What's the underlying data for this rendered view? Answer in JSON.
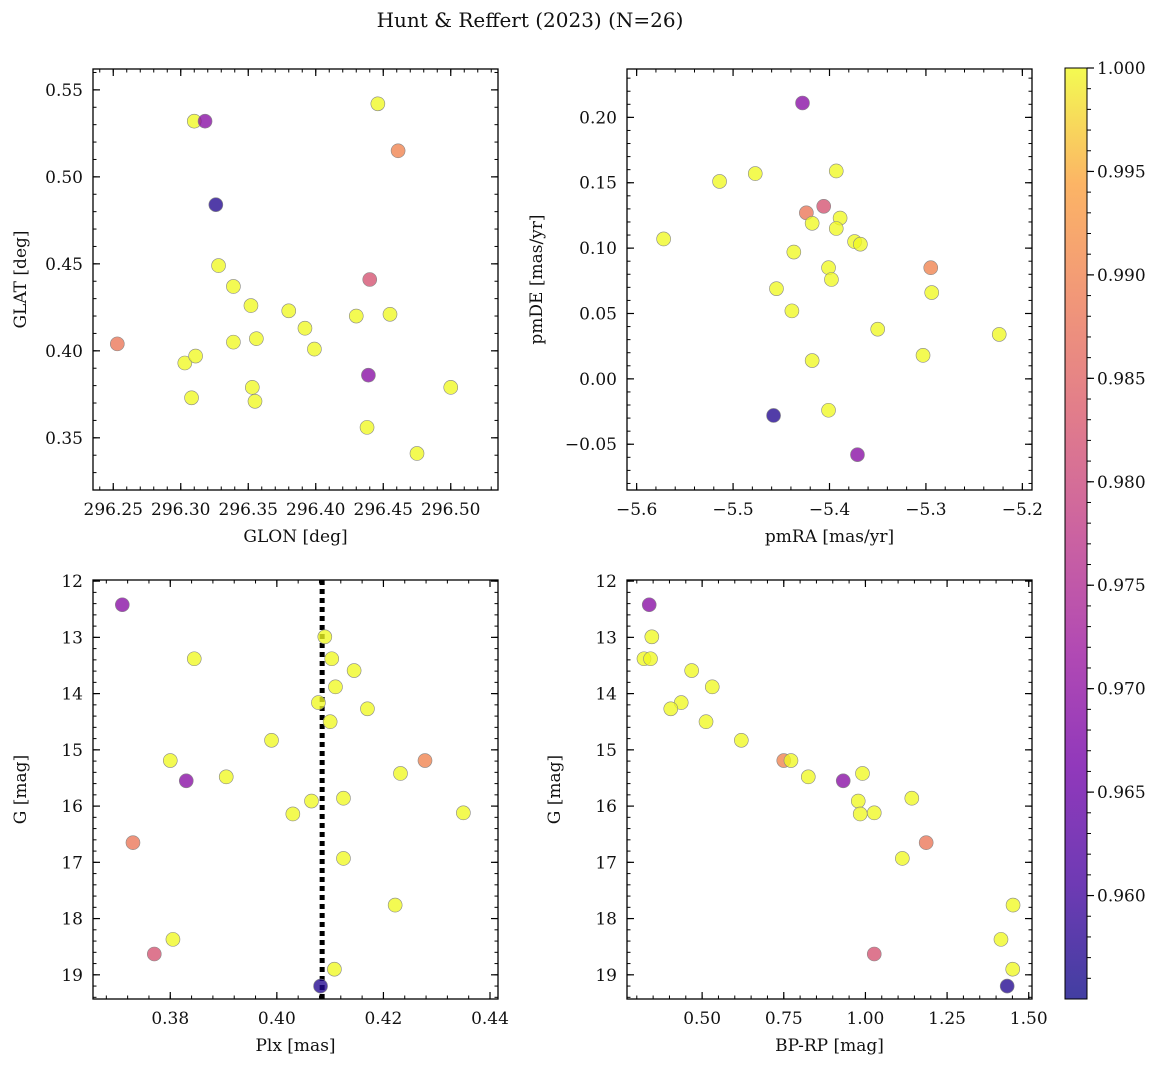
{
  "figure": {
    "title": "Hunt & Reffert (2023) (N=26)"
  },
  "colorbar": {
    "label": "",
    "range": [
      0.955,
      1.0
    ],
    "ticks": [
      "0.960",
      "0.965",
      "0.970",
      "0.975",
      "0.980",
      "0.985",
      "0.990",
      "0.995",
      "1.000"
    ],
    "colormap": "plasma"
  },
  "chart_data": [
    {
      "type": "scatter",
      "name": "glon-glat",
      "xlabel": "GLON [deg]",
      "ylabel": "GLAT [deg]",
      "xlim": [
        296.235,
        296.535
      ],
      "ylim": [
        0.32,
        0.562
      ],
      "xticks": [
        "296.25",
        "296.30",
        "296.35",
        "296.40",
        "296.45",
        "296.50"
      ],
      "yticks": [
        "0.35",
        "0.40",
        "0.45",
        "0.50",
        "0.55"
      ],
      "points": [
        {
          "x": 296.31,
          "y": 0.532,
          "c": 1.0
        },
        {
          "x": 296.318,
          "y": 0.532,
          "c": 0.969
        },
        {
          "x": 296.326,
          "y": 0.484,
          "c": 0.957
        },
        {
          "x": 296.328,
          "y": 0.449,
          "c": 1.0
        },
        {
          "x": 296.339,
          "y": 0.437,
          "c": 1.0
        },
        {
          "x": 296.352,
          "y": 0.426,
          "c": 1.0
        },
        {
          "x": 296.339,
          "y": 0.405,
          "c": 1.0
        },
        {
          "x": 296.356,
          "y": 0.407,
          "c": 1.0
        },
        {
          "x": 296.353,
          "y": 0.379,
          "c": 1.0
        },
        {
          "x": 296.355,
          "y": 0.371,
          "c": 1.0
        },
        {
          "x": 296.38,
          "y": 0.423,
          "c": 1.0
        },
        {
          "x": 296.392,
          "y": 0.413,
          "c": 1.0
        },
        {
          "x": 296.399,
          "y": 0.401,
          "c": 1.0
        },
        {
          "x": 296.43,
          "y": 0.42,
          "c": 1.0
        },
        {
          "x": 296.455,
          "y": 0.421,
          "c": 1.0
        },
        {
          "x": 296.44,
          "y": 0.441,
          "c": 0.982
        },
        {
          "x": 296.446,
          "y": 0.542,
          "c": 1.0
        },
        {
          "x": 296.461,
          "y": 0.515,
          "c": 0.99
        },
        {
          "x": 296.253,
          "y": 0.404,
          "c": 0.988
        },
        {
          "x": 296.303,
          "y": 0.393,
          "c": 1.0
        },
        {
          "x": 296.311,
          "y": 0.397,
          "c": 1.0
        },
        {
          "x": 296.308,
          "y": 0.373,
          "c": 1.0
        },
        {
          "x": 296.439,
          "y": 0.386,
          "c": 0.969
        },
        {
          "x": 296.438,
          "y": 0.356,
          "c": 1.0
        },
        {
          "x": 296.5,
          "y": 0.379,
          "c": 1.0
        },
        {
          "x": 296.475,
          "y": 0.341,
          "c": 1.0
        }
      ]
    },
    {
      "type": "scatter",
      "name": "pmra-pmde",
      "xlabel": "pmRA [mas/yr]",
      "ylabel": "pmDE [mas/yr]",
      "xlim": [
        -5.61,
        -5.19
      ],
      "ylim": [
        -0.085,
        0.237
      ],
      "xticks": [
        "−5.6",
        "−5.5",
        "−5.4",
        "−5.3",
        "−5.2"
      ],
      "yticks": [
        "−0.05",
        "0.00",
        "0.05",
        "0.10",
        "0.15",
        "0.20"
      ],
      "points": [
        {
          "x": -5.428,
          "y": 0.211,
          "c": 0.969
        },
        {
          "x": -5.514,
          "y": 0.151,
          "c": 1.0
        },
        {
          "x": -5.477,
          "y": 0.157,
          "c": 1.0
        },
        {
          "x": -5.393,
          "y": 0.159,
          "c": 1.0
        },
        {
          "x": -5.424,
          "y": 0.127,
          "c": 0.988
        },
        {
          "x": -5.406,
          "y": 0.132,
          "c": 0.982
        },
        {
          "x": -5.418,
          "y": 0.119,
          "c": 1.0
        },
        {
          "x": -5.389,
          "y": 0.123,
          "c": 1.0
        },
        {
          "x": -5.393,
          "y": 0.115,
          "c": 1.0
        },
        {
          "x": -5.374,
          "y": 0.105,
          "c": 1.0
        },
        {
          "x": -5.368,
          "y": 0.103,
          "c": 1.0
        },
        {
          "x": -5.437,
          "y": 0.097,
          "c": 1.0
        },
        {
          "x": -5.572,
          "y": 0.107,
          "c": 1.0
        },
        {
          "x": -5.401,
          "y": 0.085,
          "c": 1.0
        },
        {
          "x": -5.398,
          "y": 0.076,
          "c": 1.0
        },
        {
          "x": -5.455,
          "y": 0.069,
          "c": 1.0
        },
        {
          "x": -5.439,
          "y": 0.052,
          "c": 1.0
        },
        {
          "x": -5.295,
          "y": 0.085,
          "c": 0.99
        },
        {
          "x": -5.294,
          "y": 0.066,
          "c": 1.0
        },
        {
          "x": -5.35,
          "y": 0.038,
          "c": 1.0
        },
        {
          "x": -5.418,
          "y": 0.014,
          "c": 1.0
        },
        {
          "x": -5.303,
          "y": 0.018,
          "c": 1.0
        },
        {
          "x": -5.224,
          "y": 0.034,
          "c": 1.0
        },
        {
          "x": -5.401,
          "y": -0.024,
          "c": 1.0
        },
        {
          "x": -5.458,
          "y": -0.028,
          "c": 0.957
        },
        {
          "x": -5.371,
          "y": -0.058,
          "c": 0.969
        }
      ]
    },
    {
      "type": "scatter",
      "name": "plx-g",
      "xlabel": "Plx [mas]",
      "ylabel": "G [mag]",
      "xlim": [
        0.3655,
        0.4415
      ],
      "ylim": [
        19.43,
        11.98
      ],
      "xticks": [
        "0.38",
        "0.40",
        "0.42",
        "0.44"
      ],
      "yticks": [
        "12",
        "13",
        "14",
        "15",
        "16",
        "17",
        "18",
        "19"
      ],
      "vline": {
        "x": 0.4085,
        "style": "dotted"
      },
      "points": [
        {
          "x": 0.371,
          "y": 12.42,
          "c": 0.969
        },
        {
          "x": 0.409,
          "y": 12.99,
          "c": 1.0
        },
        {
          "x": 0.3845,
          "y": 13.38,
          "c": 1.0
        },
        {
          "x": 0.4103,
          "y": 13.38,
          "c": 1.0
        },
        {
          "x": 0.4145,
          "y": 13.59,
          "c": 1.0
        },
        {
          "x": 0.411,
          "y": 13.88,
          "c": 1.0
        },
        {
          "x": 0.4078,
          "y": 14.16,
          "c": 1.0
        },
        {
          "x": 0.417,
          "y": 14.27,
          "c": 1.0
        },
        {
          "x": 0.41,
          "y": 14.5,
          "c": 1.0
        },
        {
          "x": 0.399,
          "y": 14.83,
          "c": 1.0
        },
        {
          "x": 0.38,
          "y": 15.19,
          "c": 1.0
        },
        {
          "x": 0.4278,
          "y": 15.19,
          "c": 0.99
        },
        {
          "x": 0.4232,
          "y": 15.42,
          "c": 1.0
        },
        {
          "x": 0.3905,
          "y": 15.48,
          "c": 1.0
        },
        {
          "x": 0.383,
          "y": 15.55,
          "c": 0.969
        },
        {
          "x": 0.4125,
          "y": 15.86,
          "c": 1.0
        },
        {
          "x": 0.4065,
          "y": 15.91,
          "c": 1.0
        },
        {
          "x": 0.403,
          "y": 16.14,
          "c": 1.0
        },
        {
          "x": 0.435,
          "y": 16.12,
          "c": 1.0
        },
        {
          "x": 0.373,
          "y": 16.65,
          "c": 0.988
        },
        {
          "x": 0.4125,
          "y": 16.93,
          "c": 1.0
        },
        {
          "x": 0.4222,
          "y": 17.76,
          "c": 1.0
        },
        {
          "x": 0.3805,
          "y": 18.37,
          "c": 1.0
        },
        {
          "x": 0.377,
          "y": 18.63,
          "c": 0.982
        },
        {
          "x": 0.4108,
          "y": 18.9,
          "c": 1.0
        },
        {
          "x": 0.4082,
          "y": 19.2,
          "c": 0.957
        }
      ]
    },
    {
      "type": "scatter",
      "name": "bprp-g",
      "xlabel": "BP-RP [mag]",
      "ylabel": "G [mag]",
      "xlim": [
        0.27,
        1.51
      ],
      "ylim": [
        19.43,
        11.98
      ],
      "xticks": [
        "0.50",
        "0.75",
        "1.00",
        "1.25",
        "1.50"
      ],
      "yticks": [
        "12",
        "13",
        "14",
        "15",
        "16",
        "17",
        "18",
        "19"
      ],
      "points": [
        {
          "x": 0.338,
          "y": 12.42,
          "c": 0.969
        },
        {
          "x": 0.346,
          "y": 12.99,
          "c": 1.0
        },
        {
          "x": 0.322,
          "y": 13.38,
          "c": 1.0
        },
        {
          "x": 0.342,
          "y": 13.38,
          "c": 1.0
        },
        {
          "x": 0.468,
          "y": 13.59,
          "c": 1.0
        },
        {
          "x": 0.531,
          "y": 13.88,
          "c": 1.0
        },
        {
          "x": 0.436,
          "y": 14.16,
          "c": 1.0
        },
        {
          "x": 0.404,
          "y": 14.27,
          "c": 1.0
        },
        {
          "x": 0.512,
          "y": 14.5,
          "c": 1.0
        },
        {
          "x": 0.62,
          "y": 14.83,
          "c": 1.0
        },
        {
          "x": 0.75,
          "y": 15.19,
          "c": 0.99
        },
        {
          "x": 0.772,
          "y": 15.19,
          "c": 1.0
        },
        {
          "x": 0.825,
          "y": 15.48,
          "c": 1.0
        },
        {
          "x": 0.991,
          "y": 15.42,
          "c": 1.0
        },
        {
          "x": 0.932,
          "y": 15.55,
          "c": 0.969
        },
        {
          "x": 1.142,
          "y": 15.86,
          "c": 1.0
        },
        {
          "x": 0.978,
          "y": 15.91,
          "c": 1.0
        },
        {
          "x": 0.984,
          "y": 16.14,
          "c": 1.0
        },
        {
          "x": 1.027,
          "y": 16.12,
          "c": 1.0
        },
        {
          "x": 1.186,
          "y": 16.65,
          "c": 0.988
        },
        {
          "x": 1.113,
          "y": 16.93,
          "c": 1.0
        },
        {
          "x": 1.452,
          "y": 17.76,
          "c": 1.0
        },
        {
          "x": 1.415,
          "y": 18.37,
          "c": 1.0
        },
        {
          "x": 1.027,
          "y": 18.63,
          "c": 0.982
        },
        {
          "x": 1.451,
          "y": 18.9,
          "c": 1.0
        },
        {
          "x": 1.434,
          "y": 19.2,
          "c": 0.957
        }
      ]
    }
  ]
}
